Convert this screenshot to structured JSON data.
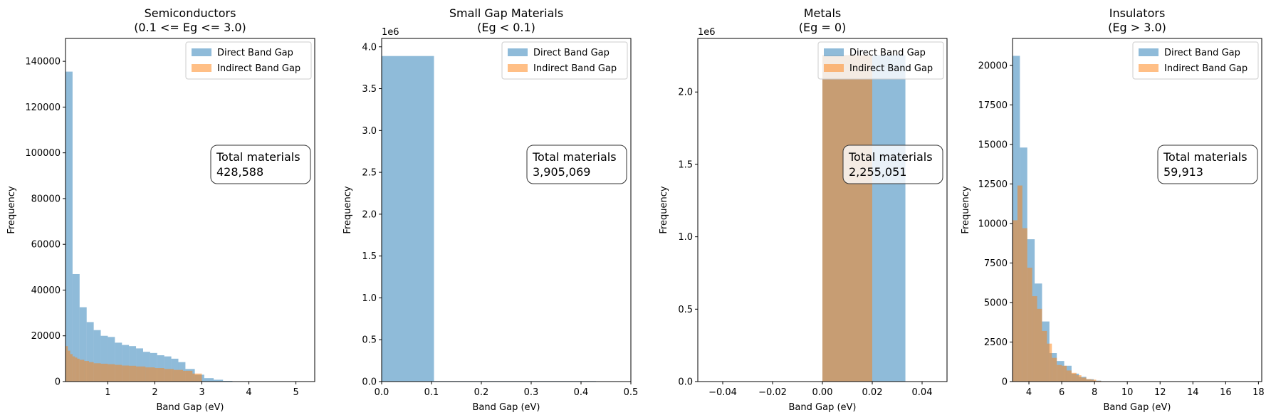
{
  "legend": {
    "labels": [
      "Direct Band Gap",
      "Indirect Band Gap"
    ],
    "colors": [
      "#1f77b4",
      "#ff7f0e"
    ],
    "alpha": 0.5,
    "location": "upper right"
  },
  "annotation": {
    "label": "Total materials"
  },
  "chart_data": [
    {
      "type": "bar",
      "title": "Semiconductors",
      "subtitle": "(0.1 <= Eg <= 3.0)",
      "xlabel": "Band Gap (eV)",
      "ylabel": "Frequency",
      "xlim": [
        0.1,
        5.4
      ],
      "ylim": [
        0,
        150000
      ],
      "y_multiplier": "",
      "xticks": [
        1,
        2,
        3,
        4,
        5
      ],
      "xtick_labels": [
        "1",
        "2",
        "3",
        "4",
        "5"
      ],
      "yticks": [
        0,
        20000,
        40000,
        60000,
        80000,
        100000,
        120000,
        140000
      ],
      "ytick_labels": [
        "0",
        "20000",
        "40000",
        "60000",
        "80000",
        "100000",
        "120000",
        "140000"
      ],
      "total_materials": "428,588",
      "series": [
        {
          "name": "Direct Band Gap",
          "bins": [
            [
              0.1,
              0.25,
              135500
            ],
            [
              0.25,
              0.4,
              47000
            ],
            [
              0.4,
              0.55,
              32500
            ],
            [
              0.55,
              0.7,
              26000
            ],
            [
              0.7,
              0.85,
              22500
            ],
            [
              0.85,
              1.0,
              20000
            ],
            [
              1.0,
              1.15,
              19500
            ],
            [
              1.15,
              1.3,
              17000
            ],
            [
              1.3,
              1.45,
              16000
            ],
            [
              1.45,
              1.6,
              15500
            ],
            [
              1.6,
              1.75,
              14500
            ],
            [
              1.75,
              1.9,
              13000
            ],
            [
              1.9,
              2.05,
              12500
            ],
            [
              2.05,
              2.2,
              11500
            ],
            [
              2.2,
              2.35,
              11000
            ],
            [
              2.35,
              2.5,
              10000
            ],
            [
              2.5,
              2.65,
              8500
            ],
            [
              2.65,
              2.85,
              5500
            ],
            [
              2.85,
              3.05,
              3000
            ],
            [
              3.05,
              3.25,
              1500
            ],
            [
              3.25,
              3.45,
              800
            ],
            [
              3.45,
              3.65,
              300
            ],
            [
              3.65,
              3.85,
              100
            ]
          ]
        },
        {
          "name": "Indirect Band Gap",
          "bins": [
            [
              0.1,
              0.15,
              15500
            ],
            [
              0.15,
              0.2,
              13500
            ],
            [
              0.2,
              0.25,
              12000
            ],
            [
              0.25,
              0.3,
              11000
            ],
            [
              0.3,
              0.35,
              10500
            ],
            [
              0.35,
              0.4,
              10000
            ],
            [
              0.4,
              0.5,
              9500
            ],
            [
              0.5,
              0.6,
              9000
            ],
            [
              0.6,
              0.7,
              8500
            ],
            [
              0.7,
              0.85,
              8000
            ],
            [
              0.85,
              1.0,
              7800
            ],
            [
              1.0,
              1.15,
              7600
            ],
            [
              1.15,
              1.3,
              7300
            ],
            [
              1.3,
              1.45,
              7000
            ],
            [
              1.45,
              1.6,
              6900
            ],
            [
              1.6,
              1.8,
              6600
            ],
            [
              1.8,
              2.0,
              6200
            ],
            [
              2.0,
              2.2,
              5900
            ],
            [
              2.2,
              2.4,
              5500
            ],
            [
              2.4,
              2.6,
              5100
            ],
            [
              2.6,
              2.8,
              4700
            ],
            [
              2.8,
              3.0,
              3500
            ]
          ]
        }
      ]
    },
    {
      "type": "bar",
      "title": "Small Gap Materials",
      "subtitle": "(Eg < 0.1)",
      "xlabel": "Band Gap (eV)",
      "ylabel": "Frequency",
      "xlim": [
        0,
        0.5
      ],
      "ylim": [
        0,
        4.1
      ],
      "y_multiplier": "1e6",
      "xticks": [
        0,
        0.1,
        0.2,
        0.3,
        0.4,
        0.5
      ],
      "xtick_labels": [
        "0.0",
        "0.1",
        "0.2",
        "0.3",
        "0.4",
        "0.5"
      ],
      "yticks": [
        0,
        0.5,
        1.0,
        1.5,
        2.0,
        2.5,
        3.0,
        3.5,
        4.0
      ],
      "ytick_labels": [
        "0.0",
        "0.5",
        "1.0",
        "1.5",
        "2.0",
        "2.5",
        "3.0",
        "3.5",
        "4.0"
      ],
      "total_materials": "3,905,069",
      "series": [
        {
          "name": "Direct Band Gap",
          "bins": [
            [
              0.0,
              0.105,
              3.89
            ],
            [
              0.105,
              0.43,
              0.006
            ]
          ]
        }
      ]
    },
    {
      "type": "bar",
      "title": "Metals",
      "subtitle": "(Eg = 0)",
      "xlabel": "Band Gap (eV)",
      "ylabel": "Frequency",
      "xlim": [
        -0.05,
        0.05
      ],
      "ylim": [
        0,
        2.37
      ],
      "y_multiplier": "1e6",
      "xticks": [
        -0.04,
        -0.02,
        0.0,
        0.02,
        0.04
      ],
      "xtick_labels": [
        "−0.04",
        "−0.02",
        "0.00",
        "0.02",
        "0.04"
      ],
      "yticks": [
        0,
        0.5,
        1.0,
        1.5,
        2.0
      ],
      "ytick_labels": [
        "0.0",
        "0.5",
        "1.0",
        "1.5",
        "2.0"
      ],
      "total_materials": "2,255,051",
      "series": [
        {
          "name": "Direct Band Gap",
          "bins": [
            [
              0.0,
              0.0333,
              2.255
            ]
          ]
        },
        {
          "name": "Indirect Band Gap",
          "bins": [
            [
              0.0,
              0.02,
              2.255
            ]
          ]
        }
      ]
    },
    {
      "type": "bar",
      "title": "Insulators",
      "subtitle": "(Eg > 3.0)",
      "xlabel": "Band Gap (eV)",
      "ylabel": "Frequency",
      "xlim": [
        3.0,
        18.2
      ],
      "ylim": [
        0,
        21700
      ],
      "y_multiplier": "",
      "xticks": [
        4,
        6,
        8,
        10,
        12,
        14,
        16,
        18
      ],
      "xtick_labels": [
        "4",
        "6",
        "8",
        "10",
        "12",
        "14",
        "16",
        "18"
      ],
      "yticks": [
        0,
        2500,
        5000,
        7500,
        10000,
        12500,
        15000,
        17500,
        20000
      ],
      "ytick_labels": [
        "0",
        "2500",
        "5000",
        "7500",
        "10000",
        "12500",
        "15000",
        "17500",
        "20000"
      ],
      "total_materials": "59,913",
      "series": [
        {
          "name": "Direct Band Gap",
          "bins": [
            [
              3.0,
              3.45,
              20600
            ],
            [
              3.45,
              3.9,
              14800
            ],
            [
              3.9,
              4.35,
              9000
            ],
            [
              4.35,
              4.8,
              6200
            ],
            [
              4.8,
              5.25,
              3800
            ],
            [
              5.25,
              5.7,
              1800
            ],
            [
              5.7,
              6.15,
              1300
            ],
            [
              6.15,
              6.6,
              1000
            ],
            [
              6.6,
              7.05,
              500
            ],
            [
              7.05,
              7.5,
              300
            ],
            [
              7.5,
              7.95,
              150
            ],
            [
              7.95,
              8.4,
              60
            ]
          ]
        },
        {
          "name": "Indirect Band Gap",
          "bins": [
            [
              3.0,
              3.3,
              10200
            ],
            [
              3.3,
              3.6,
              12400
            ],
            [
              3.6,
              3.9,
              9700
            ],
            [
              3.9,
              4.2,
              7200
            ],
            [
              4.2,
              4.5,
              5400
            ],
            [
              4.5,
              4.8,
              4600
            ],
            [
              4.8,
              5.1,
              3200
            ],
            [
              5.1,
              5.4,
              2400
            ],
            [
              5.4,
              5.7,
              1500
            ],
            [
              5.7,
              6.0,
              1050
            ],
            [
              6.0,
              6.3,
              1000
            ],
            [
              6.3,
              6.6,
              700
            ],
            [
              6.6,
              6.9,
              550
            ],
            [
              6.9,
              7.2,
              400
            ],
            [
              7.2,
              7.5,
              250
            ],
            [
              7.5,
              7.8,
              150
            ],
            [
              7.8,
              8.1,
              120
            ],
            [
              8.1,
              8.4,
              50
            ]
          ]
        }
      ]
    }
  ]
}
